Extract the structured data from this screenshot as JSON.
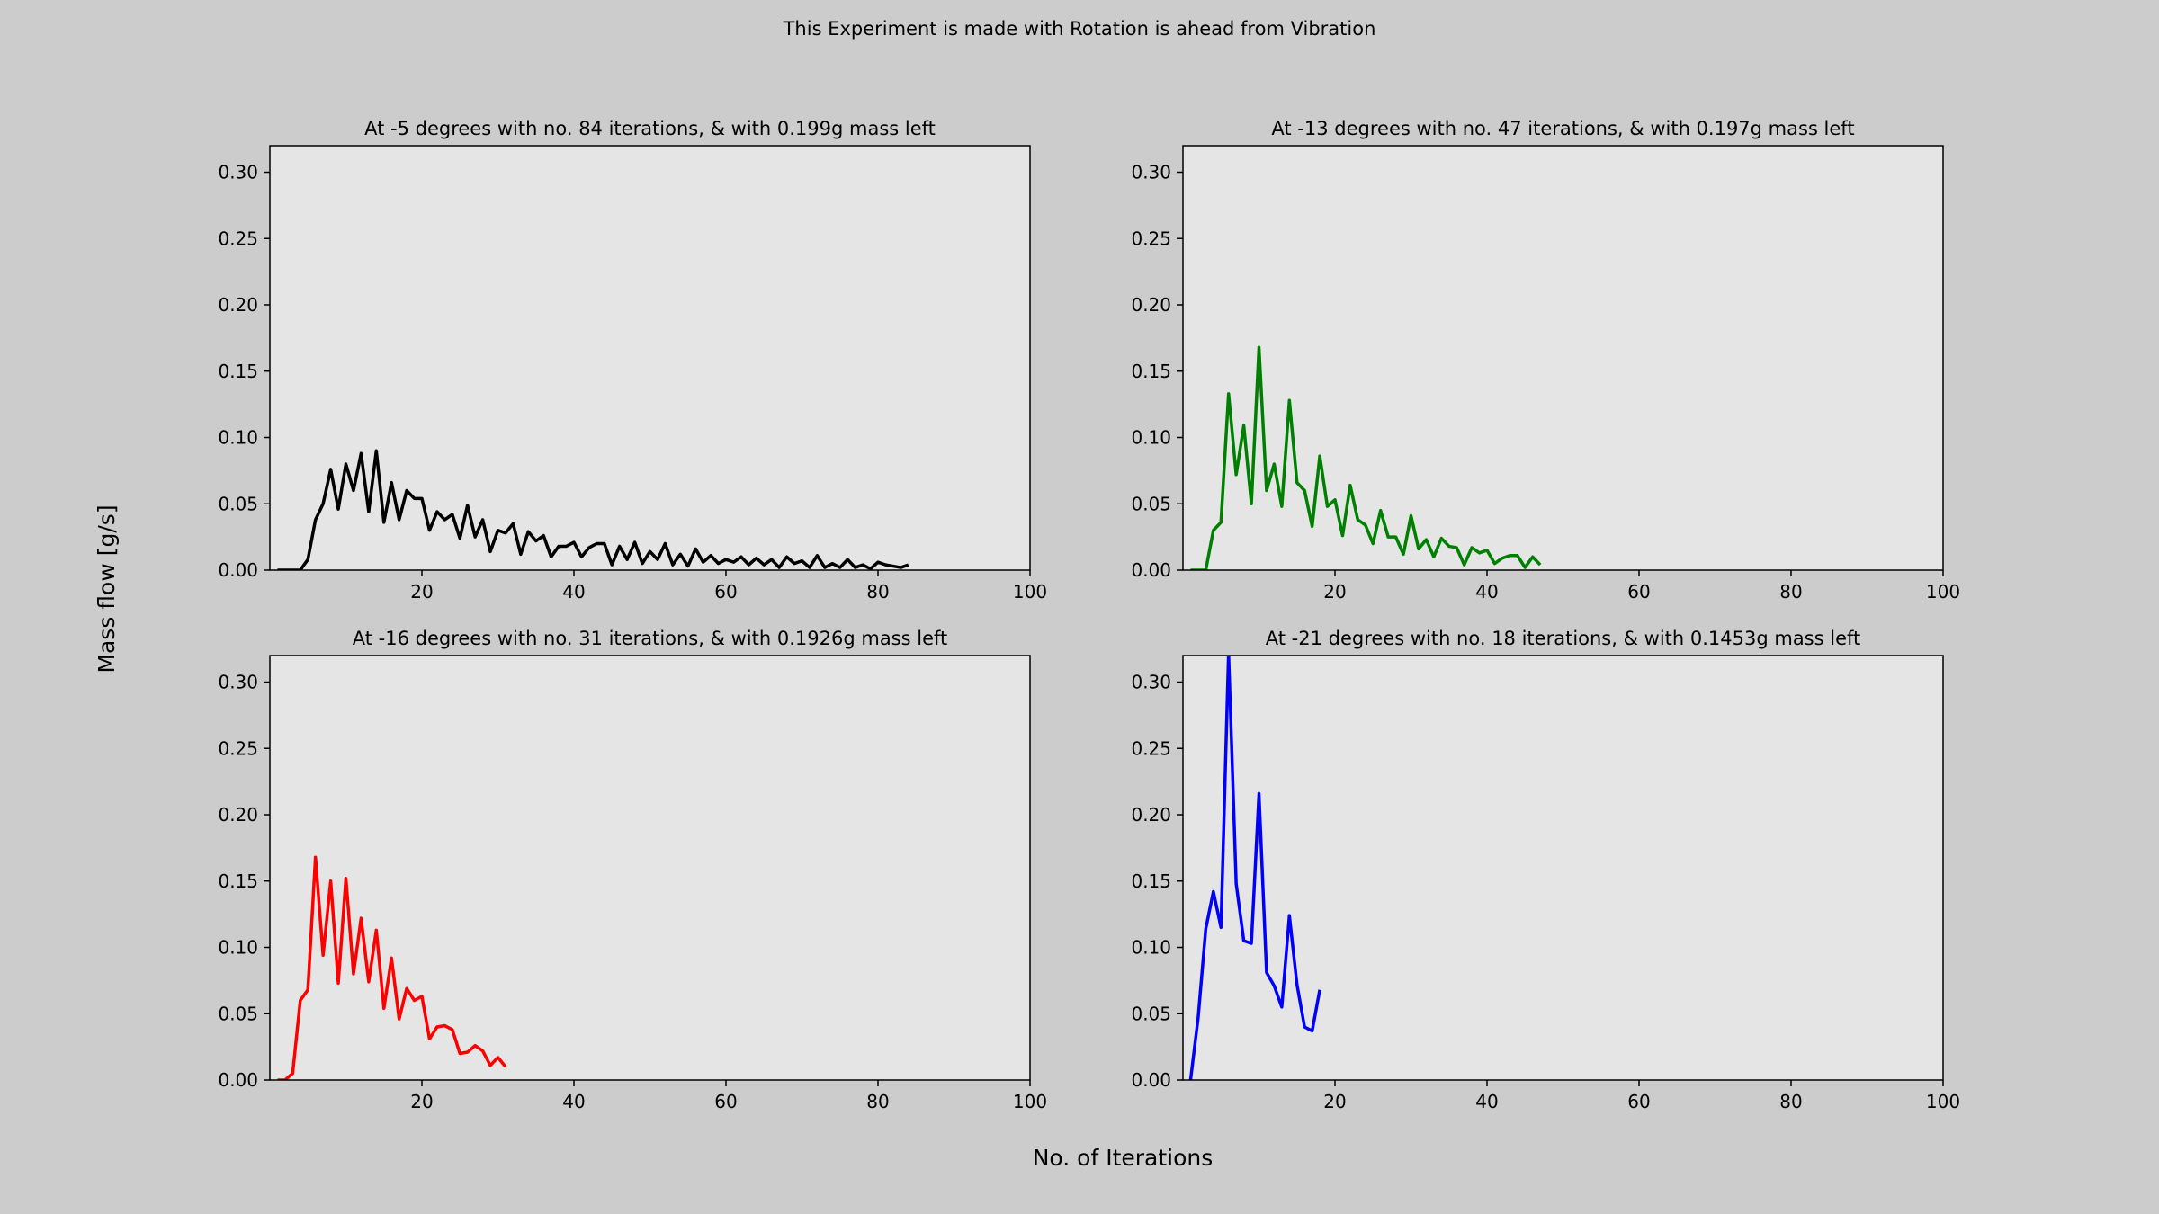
{
  "figure": {
    "suptitle": "This Experiment is made with Rotation is ahead from Vibration",
    "xlabel": "No. of Iterations",
    "ylabel": "Mass flow [g/s]"
  },
  "chart_data": [
    {
      "type": "line",
      "title": "At -5 degrees with no. 84 iterations, & with 0.199g mass left",
      "color": "#000000",
      "xlim": [
        0,
        100
      ],
      "ylim": [
        0,
        0.32
      ],
      "xticks": [
        20,
        40,
        60,
        80,
        100
      ],
      "yticks": [
        0.0,
        0.05,
        0.1,
        0.15,
        0.2,
        0.25,
        0.3
      ],
      "x": [
        1,
        2,
        3,
        4,
        5,
        6,
        7,
        8,
        9,
        10,
        11,
        12,
        13,
        14,
        15,
        16,
        17,
        18,
        19,
        20,
        21,
        22,
        23,
        24,
        25,
        26,
        27,
        28,
        29,
        30,
        31,
        32,
        33,
        34,
        35,
        36,
        37,
        38,
        39,
        40,
        41,
        42,
        43,
        44,
        45,
        46,
        47,
        48,
        49,
        50,
        51,
        52,
        53,
        54,
        55,
        56,
        57,
        58,
        59,
        60,
        61,
        62,
        63,
        64,
        65,
        66,
        67,
        68,
        69,
        70,
        71,
        72,
        73,
        74,
        75,
        76,
        77,
        78,
        79,
        80,
        81,
        82,
        83,
        84
      ],
      "y": [
        0.0,
        0.0,
        0.0,
        0.0,
        0.008,
        0.038,
        0.05,
        0.076,
        0.046,
        0.08,
        0.06,
        0.088,
        0.044,
        0.09,
        0.036,
        0.066,
        0.038,
        0.06,
        0.054,
        0.054,
        0.03,
        0.044,
        0.038,
        0.042,
        0.024,
        0.049,
        0.025,
        0.038,
        0.014,
        0.03,
        0.028,
        0.035,
        0.012,
        0.029,
        0.022,
        0.026,
        0.01,
        0.018,
        0.018,
        0.021,
        0.01,
        0.017,
        0.02,
        0.02,
        0.004,
        0.018,
        0.008,
        0.021,
        0.005,
        0.014,
        0.008,
        0.02,
        0.004,
        0.012,
        0.003,
        0.016,
        0.006,
        0.011,
        0.005,
        0.008,
        0.006,
        0.01,
        0.004,
        0.009,
        0.004,
        0.008,
        0.002,
        0.01,
        0.005,
        0.007,
        0.002,
        0.011,
        0.002,
        0.005,
        0.002,
        0.008,
        0.002,
        0.004,
        0.001,
        0.006,
        0.004,
        0.003,
        0.002,
        0.004
      ]
    },
    {
      "type": "line",
      "title": "At -13 degrees with no. 47 iterations, & with 0.197g mass left",
      "color": "#008000",
      "xlim": [
        0,
        100
      ],
      "ylim": [
        0,
        0.32
      ],
      "xticks": [
        20,
        40,
        60,
        80,
        100
      ],
      "yticks": [
        0.0,
        0.05,
        0.1,
        0.15,
        0.2,
        0.25,
        0.3
      ],
      "x": [
        1,
        2,
        3,
        4,
        5,
        6,
        7,
        8,
        9,
        10,
        11,
        12,
        13,
        14,
        15,
        16,
        17,
        18,
        19,
        20,
        21,
        22,
        23,
        24,
        25,
        26,
        27,
        28,
        29,
        30,
        31,
        32,
        33,
        34,
        35,
        36,
        37,
        38,
        39,
        40,
        41,
        42,
        43,
        44,
        45,
        46,
        47
      ],
      "y": [
        0.0,
        0.0,
        0.0,
        0.03,
        0.036,
        0.133,
        0.072,
        0.109,
        0.05,
        0.168,
        0.06,
        0.08,
        0.048,
        0.128,
        0.066,
        0.06,
        0.033,
        0.086,
        0.048,
        0.053,
        0.026,
        0.064,
        0.038,
        0.034,
        0.02,
        0.045,
        0.025,
        0.025,
        0.012,
        0.041,
        0.016,
        0.023,
        0.01,
        0.024,
        0.018,
        0.017,
        0.004,
        0.017,
        0.013,
        0.015,
        0.005,
        0.009,
        0.011,
        0.011,
        0.002,
        0.01,
        0.004
      ]
    },
    {
      "type": "line",
      "title": "At -16 degrees with no. 31 iterations, & with 0.1926g mass left",
      "color": "#ff0000",
      "xlim": [
        0,
        100
      ],
      "ylim": [
        0,
        0.32
      ],
      "xticks": [
        20,
        40,
        60,
        80,
        100
      ],
      "yticks": [
        0.0,
        0.05,
        0.1,
        0.15,
        0.2,
        0.25,
        0.3
      ],
      "x": [
        1,
        2,
        3,
        4,
        5,
        6,
        7,
        8,
        9,
        10,
        11,
        12,
        13,
        14,
        15,
        16,
        17,
        18,
        19,
        20,
        21,
        22,
        23,
        24,
        25,
        26,
        27,
        28,
        29,
        30,
        31
      ],
      "y": [
        0.0,
        0.0,
        0.005,
        0.06,
        0.068,
        0.168,
        0.094,
        0.15,
        0.073,
        0.152,
        0.08,
        0.122,
        0.074,
        0.113,
        0.054,
        0.092,
        0.046,
        0.069,
        0.06,
        0.063,
        0.031,
        0.04,
        0.041,
        0.038,
        0.02,
        0.021,
        0.026,
        0.022,
        0.011,
        0.017,
        0.01
      ]
    },
    {
      "type": "line",
      "title": "At -21 degrees with no. 18 iterations, & with 0.1453g mass left",
      "color": "#0000ff",
      "xlim": [
        0,
        100
      ],
      "ylim": [
        0,
        0.32
      ],
      "xticks": [
        20,
        40,
        60,
        80,
        100
      ],
      "yticks": [
        0.0,
        0.05,
        0.1,
        0.15,
        0.2,
        0.25,
        0.3
      ],
      "x": [
        1,
        2,
        3,
        4,
        5,
        6,
        7,
        8,
        9,
        10,
        11,
        12,
        13,
        14,
        15,
        16,
        17,
        18
      ],
      "y": [
        0.0,
        0.047,
        0.114,
        0.142,
        0.115,
        0.322,
        0.148,
        0.105,
        0.103,
        0.216,
        0.081,
        0.071,
        0.055,
        0.124,
        0.072,
        0.04,
        0.037,
        0.068
      ]
    }
  ]
}
